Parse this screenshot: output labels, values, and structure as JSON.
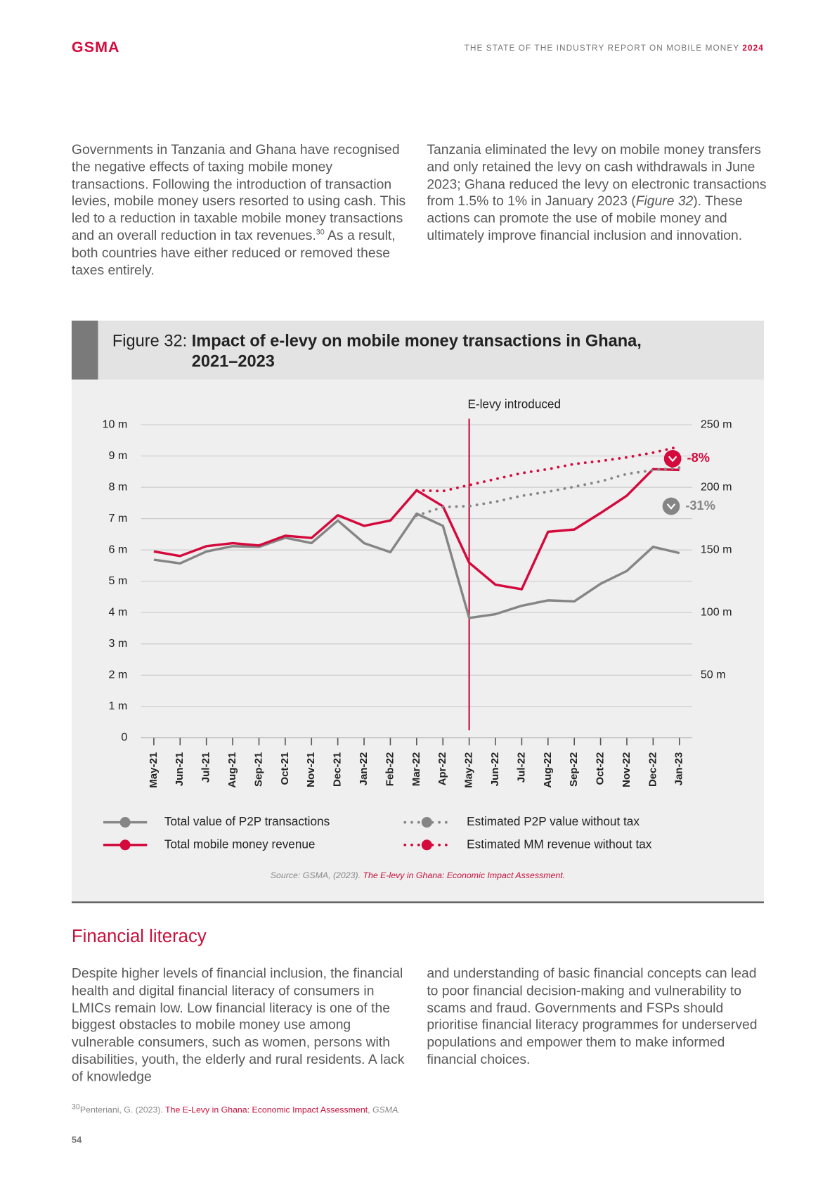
{
  "header": {
    "logo": "GSMA",
    "report": "THE STATE OF THE INDUSTRY REPORT ON MOBILE MONEY ",
    "year": "2024"
  },
  "intro": {
    "left": [
      "Governments in Tanzania and Ghana have recognised the negative effects of taxing mobile money transactions. Following the introduction of transaction levies, mobile money users resorted to using cash. This led to a reduction in taxable mobile money transactions and an overall reduction in tax revenues.",
      "30",
      " As a result, both countries have either reduced or removed these taxes entirely."
    ],
    "right": [
      "Tanzania eliminated the levy on mobile money transfers and only retained the levy on cash withdrawals in June 2023; Ghana reduced the levy on electronic transactions from 1.5% to 1% in January 2023 (",
      "Figure 32",
      "). These actions can promote the use of mobile money and ultimately improve financial inclusion and innovation."
    ]
  },
  "figure": {
    "label": "Figure 32: ",
    "title": "Impact of e-levy on mobile money transactions in Ghana, 2021–2023",
    "source": "Source: GSMA, (2023). ",
    "source_link": "The E-levy in Ghana: Economic Impact Assessment."
  },
  "chart_data": {
    "type": "line",
    "categories": [
      "May-21",
      "Jun-21",
      "Jul-21",
      "Aug-21",
      "Sep-21",
      "Oct-21",
      "Nov-21",
      "Dec-21",
      "Jan-22",
      "Feb-22",
      "Mar-22",
      "Apr-22",
      "May-22",
      "Jun-22",
      "Jul-22",
      "Aug-22",
      "Sep-22",
      "Oct-22",
      "Nov-22",
      "Dec-22",
      "Jan-23"
    ],
    "series": [
      {
        "name": "Total value of P2P transactions",
        "color": "#858585",
        "line_style": "solid",
        "axis": "y",
        "values": [
          5.69,
          5.57,
          5.95,
          6.12,
          6.1,
          6.39,
          6.22,
          6.94,
          6.22,
          5.93,
          7.16,
          6.77,
          3.83,
          3.95,
          4.22,
          4.39,
          4.36,
          4.92,
          5.33,
          6.1,
          5.9
        ]
      },
      {
        "name": "Total mobile money revenue",
        "color": "#d4093c",
        "line_style": "solid",
        "axis": "y2",
        "values": [
          148.8,
          145.2,
          153,
          155.4,
          153.6,
          161.4,
          159.6,
          177.7,
          169.3,
          173.5,
          197.6,
          184.9,
          139.8,
          122.3,
          118.7,
          164.5,
          166.3,
          179.5,
          193.4,
          214.5,
          213.9
        ]
      },
      {
        "name": "Estimated P2P value without tax",
        "color": "#858585",
        "line_style": "dotted",
        "axis": "y",
        "values": [
          null,
          null,
          null,
          null,
          null,
          null,
          null,
          null,
          null,
          null,
          7.1,
          7.37,
          7.4,
          7.54,
          7.73,
          7.86,
          8.02,
          8.19,
          8.43,
          8.55,
          8.63
        ]
      },
      {
        "name": "Estimated MM revenue without tax",
        "color": "#d4093c",
        "line_style": "dotted",
        "axis": "y2",
        "values": [
          null,
          null,
          null,
          null,
          null,
          null,
          null,
          null,
          null,
          null,
          197.6,
          197,
          201.8,
          206.6,
          211.4,
          214.5,
          218.7,
          221,
          224,
          227.7,
          232.5
        ]
      }
    ],
    "ylim": [
      0,
      10
    ],
    "yticks": [
      {
        "value": 0,
        "label": "0"
      },
      {
        "value": 1,
        "label": "1 m"
      },
      {
        "value": 2,
        "label": "2 m"
      },
      {
        "value": 3,
        "label": "3 m"
      },
      {
        "value": 4,
        "label": "4 m"
      },
      {
        "value": 5,
        "label": "5 m"
      },
      {
        "value": 6,
        "label": "6 m"
      },
      {
        "value": 7,
        "label": "7 m"
      },
      {
        "value": 8,
        "label": "8 m"
      },
      {
        "value": 9,
        "label": "9 m"
      },
      {
        "value": 10,
        "label": "10 m"
      }
    ],
    "y2lim": [
      0,
      250
    ],
    "y2ticks": [
      {
        "value": 50,
        "label": "50 m"
      },
      {
        "value": 100,
        "label": "100 m"
      },
      {
        "value": 150,
        "label": "150 m"
      },
      {
        "value": 200,
        "label": "200 m"
      },
      {
        "value": 250,
        "label": "250 m"
      }
    ],
    "grid": true,
    "legend": "bottom",
    "event_label": "E-levy introduced",
    "event_at": "May-22",
    "annotations": [
      {
        "text": "-8%",
        "color": "#d4093c"
      },
      {
        "text": "-31%",
        "color": "#858585"
      }
    ]
  },
  "section": {
    "heading": "Financial literacy",
    "left": "Despite higher levels of financial inclusion, the financial health and digital financial literacy of consumers in LMICs remain low. Low financial literacy is one of the biggest obstacles to mobile money use among vulnerable consumers, such as women, persons with disabilities, youth, the elderly and rural residents. A lack of knowledge",
    "right": "and understanding of basic financial concepts can lead to poor financial decision-making and vulnerability to scams and fraud. Governments and FSPs should prioritise financial literacy programmes for underserved populations and empower them to make informed financial choices."
  },
  "footnote": {
    "number": "30",
    "text": "Penteriani, G. (2023). ",
    "link": "The E-Levy in Ghana: Economic Impact Assessment",
    "after": ", ",
    "publisher": "GSMA."
  },
  "page_number": 54
}
